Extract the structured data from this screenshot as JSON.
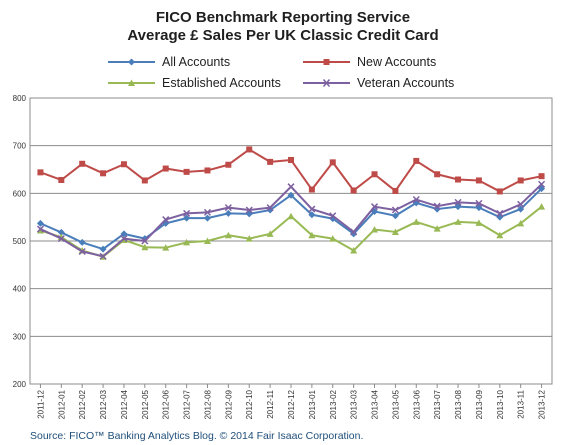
{
  "chart_data": {
    "type": "line",
    "title": "FICO Benchmark Reporting Service",
    "subtitle": "Average £ Sales Per UK Classic Credit Card",
    "ylim": [
      200,
      800
    ],
    "yticks": [
      "200",
      "300",
      "400",
      "500",
      "600",
      "700",
      "800"
    ],
    "grid": true,
    "legend_position": "top",
    "categories": [
      "2011-12",
      "2012-01",
      "2012-02",
      "2012-03",
      "2012-04",
      "2012-05",
      "2012-06",
      "2012-07",
      "2012-08",
      "2012-09",
      "2012-10",
      "2012-11",
      "2012-12",
      "2013-01",
      "2013-02",
      "2013-03",
      "2013-04",
      "2013-05",
      "2013-06",
      "2013-07",
      "2013-08",
      "2013-09",
      "2013-10",
      "2013-11",
      "2013-12"
    ],
    "series": [
      {
        "name": "All Accounts",
        "color": "#4a7ebb",
        "marker": "diamond",
        "values": [
          537,
          518,
          497,
          483,
          515,
          505,
          537,
          548,
          548,
          558,
          557,
          565,
          596,
          555,
          547,
          515,
          562,
          553,
          580,
          567,
          572,
          570,
          550,
          567,
          610
        ]
      },
      {
        "name": "New Accounts",
        "color": "#be4b48",
        "marker": "square",
        "values": [
          644,
          628,
          662,
          642,
          661,
          627,
          652,
          645,
          648,
          660,
          692,
          666,
          670,
          608,
          665,
          606,
          640,
          605,
          668,
          640,
          629,
          627,
          604,
          627,
          636
        ]
      },
      {
        "name": "Established Accounts",
        "color": "#98b954",
        "marker": "triangle",
        "values": [
          522,
          508,
          480,
          467,
          502,
          487,
          486,
          497,
          500,
          512,
          505,
          515,
          552,
          512,
          505,
          480,
          524,
          519,
          540,
          526,
          540,
          538,
          512,
          537,
          572
        ]
      },
      {
        "name": "Veteran Accounts",
        "color": "#7d60a0",
        "marker": "x",
        "values": [
          525,
          505,
          478,
          468,
          505,
          500,
          545,
          558,
          560,
          570,
          565,
          570,
          614,
          567,
          553,
          519,
          572,
          565,
          587,
          573,
          581,
          579,
          558,
          577,
          619
        ]
      }
    ]
  },
  "source": "Source: FICO™ Banking Analytics Blog. © 2014 Fair Isaac Corporation."
}
